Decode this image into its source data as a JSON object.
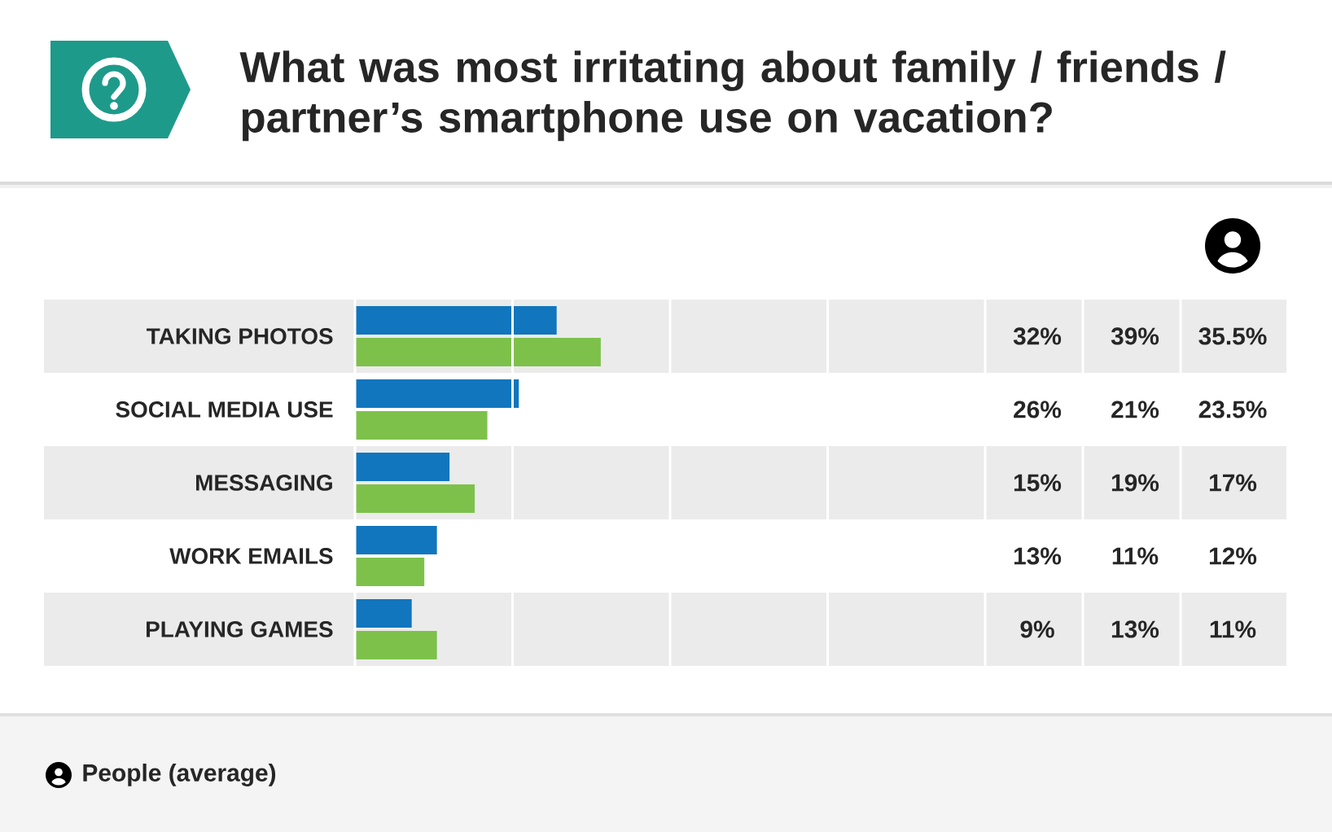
{
  "chart_data": {
    "type": "bar",
    "orientation": "horizontal",
    "title": "What was most irritating about family / friends / partner’s smartphone use on vacation?",
    "categories": [
      "TAKING PHOTOS",
      "SOCIAL MEDIA USE",
      "MESSAGING",
      "WORK EMAILS",
      "PLAYING GAMES"
    ],
    "series": [
      {
        "color": "#1176bd",
        "values": [
          32,
          26,
          15,
          13,
          9
        ],
        "value_labels": [
          "32%",
          "26%",
          "15%",
          "13%",
          "9%"
        ]
      },
      {
        "color": "#7dc14b",
        "values": [
          39,
          21,
          19,
          11,
          13
        ],
        "value_labels": [
          "39%",
          "21%",
          "19%",
          "11%",
          "13%"
        ]
      }
    ],
    "annotations": [
      "35.5%",
      "23.5%",
      "17%",
      "12%",
      "11%",
      "People (average)"
    ],
    "xlim": [
      0,
      100
    ],
    "xticks": [
      {
        "value": 0,
        "label": null
      },
      {
        "value": 25,
        "label": null
      },
      {
        "value": 50,
        "label": null
      },
      {
        "value": 75,
        "label": null
      },
      {
        "value": 100,
        "label": null
      }
    ],
    "grid": "x",
    "tick_labels": "y"
  }
}
